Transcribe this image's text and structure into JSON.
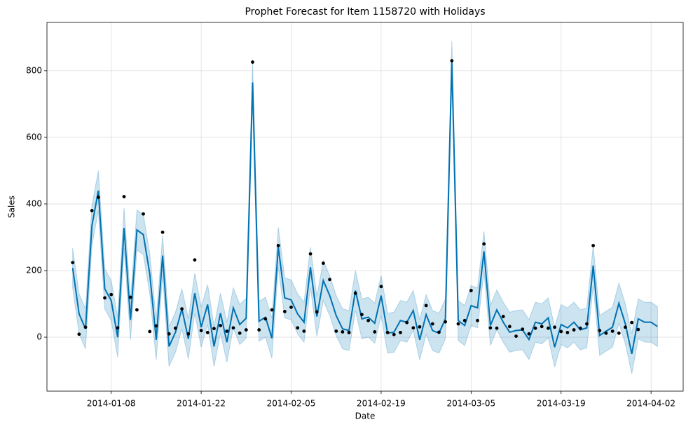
{
  "chart_data": {
    "type": "forecast",
    "title": "Prophet Forecast for Item 1158720 with Holidays",
    "x_label": "Date",
    "y_label": "Sales",
    "x_start": "2014-01-02",
    "xlim": [
      "2013-12-29",
      "2014-04-07"
    ],
    "xticks": [
      "2014-01-08",
      "2014-01-22",
      "2014-02-05",
      "2014-02-19",
      "2014-03-05",
      "2014-03-19",
      "2014-04-02"
    ],
    "ylim": [
      -162,
      945
    ],
    "yticks": [
      0,
      200,
      400,
      600,
      800
    ],
    "grid": true,
    "line_color": "#0072B2",
    "band_color": "#0072B2",
    "point_color": "#000000",
    "actual": [
      224,
      9,
      30,
      380,
      420,
      118,
      128,
      28,
      422,
      120,
      82,
      370,
      17,
      34,
      315,
      10,
      27,
      85,
      10,
      232,
      20,
      14,
      26,
      35,
      18,
      28,
      12,
      22,
      826,
      22,
      55,
      82,
      275,
      77,
      90,
      28,
      18,
      250,
      76,
      222,
      173,
      18,
      16,
      14,
      132,
      68,
      50,
      16,
      152,
      14,
      8,
      14,
      44,
      28,
      31,
      95,
      40,
      15,
      46,
      830,
      40,
      50,
      140,
      50,
      280,
      28,
      27,
      62,
      32,
      3,
      24,
      10,
      27,
      32,
      27,
      30,
      17,
      14,
      22,
      27,
      40,
      275,
      20,
      12,
      18,
      12,
      30,
      44,
      23,
      null,
      null,
      null
    ],
    "yhat": [
      208,
      70,
      25,
      335,
      440,
      145,
      110,
      0,
      328,
      52,
      322,
      308,
      190,
      -8,
      245,
      -28,
      15,
      85,
      -5,
      132,
      30,
      98,
      -28,
      72,
      -15,
      88,
      38,
      57,
      765,
      48,
      60,
      -3,
      270,
      118,
      112,
      70,
      45,
      210,
      62,
      170,
      125,
      65,
      25,
      20,
      140,
      55,
      60,
      42,
      125,
      12,
      15,
      50,
      45,
      80,
      -8,
      68,
      20,
      12,
      55,
      830,
      50,
      35,
      95,
      88,
      258,
      35,
      82,
      45,
      15,
      20,
      22,
      -7,
      45,
      40,
      58,
      -30,
      38,
      28,
      45,
      22,
      28,
      215,
      5,
      18,
      30,
      102,
      40,
      -50,
      55,
      45,
      45,
      32
    ],
    "yhat_lower": [
      148,
      10,
      -35,
      275,
      380,
      85,
      50,
      -60,
      268,
      -8,
      262,
      248,
      130,
      -68,
      185,
      -88,
      -45,
      25,
      -65,
      72,
      -30,
      38,
      -88,
      12,
      -75,
      28,
      -22,
      -3,
      705,
      -12,
      0,
      -63,
      210,
      58,
      52,
      10,
      -15,
      150,
      2,
      110,
      65,
      5,
      -35,
      -40,
      80,
      -5,
      0,
      -18,
      65,
      -48,
      -45,
      -10,
      -15,
      20,
      -68,
      8,
      -40,
      -48,
      -5,
      770,
      -10,
      -25,
      35,
      28,
      198,
      -25,
      22,
      -15,
      -45,
      -40,
      -38,
      -67,
      -15,
      -20,
      -2,
      -90,
      -22,
      -32,
      -15,
      -38,
      -32,
      155,
      -55,
      -42,
      -30,
      42,
      -20,
      -110,
      -5,
      -15,
      -15,
      -28
    ],
    "yhat_upper": [
      268,
      130,
      85,
      395,
      500,
      205,
      170,
      60,
      388,
      112,
      382,
      368,
      250,
      52,
      305,
      32,
      75,
      145,
      55,
      192,
      90,
      158,
      32,
      132,
      45,
      148,
      98,
      117,
      825,
      108,
      120,
      57,
      330,
      178,
      172,
      130,
      105,
      270,
      122,
      230,
      185,
      125,
      85,
      80,
      200,
      115,
      120,
      102,
      185,
      72,
      75,
      110,
      105,
      140,
      52,
      128,
      80,
      72,
      115,
      890,
      110,
      95,
      155,
      148,
      318,
      95,
      142,
      105,
      75,
      80,
      82,
      53,
      105,
      100,
      118,
      30,
      98,
      88,
      105,
      82,
      88,
      275,
      65,
      78,
      90,
      162,
      100,
      10,
      115,
      105,
      105,
      92
    ]
  }
}
